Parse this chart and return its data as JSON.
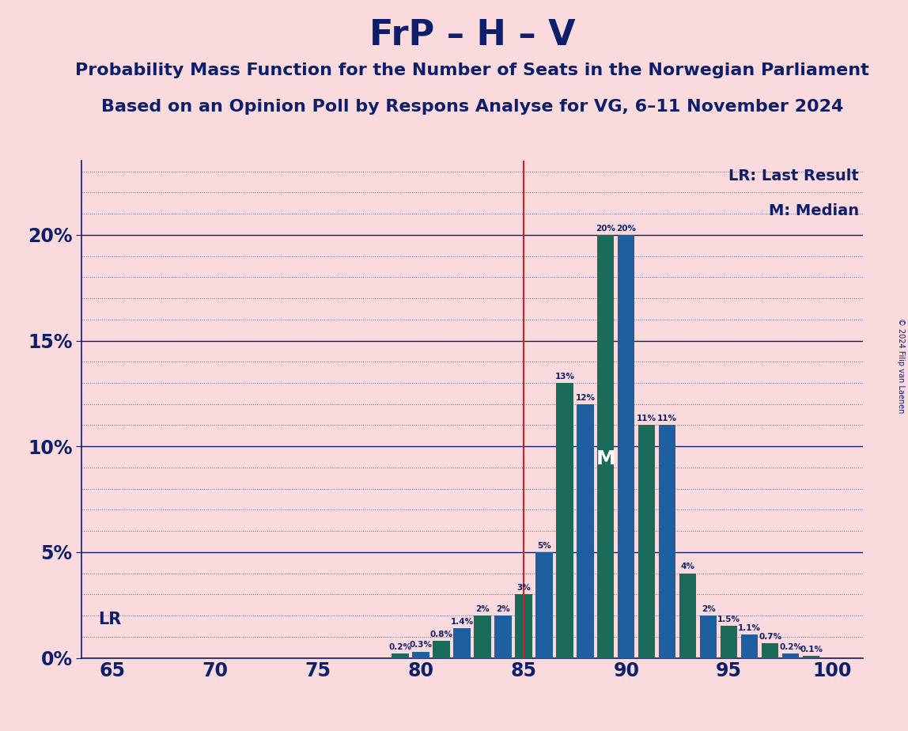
{
  "title": "FrP – H – V",
  "subtitle1": "Probability Mass Function for the Number of Seats in the Norwegian Parliament",
  "subtitle2": "Based on an Opinion Poll by Respons Analyse for VG, 6–11 November 2024",
  "copyright": "© 2024 Filip van Laenen",
  "seats": [
    65,
    66,
    67,
    68,
    69,
    70,
    71,
    72,
    73,
    74,
    75,
    76,
    77,
    78,
    79,
    80,
    81,
    82,
    83,
    84,
    85,
    86,
    87,
    88,
    89,
    90,
    91,
    92,
    93,
    94,
    95,
    96,
    97,
    98,
    99,
    100
  ],
  "values": [
    0.0,
    0.0,
    0.0,
    0.0,
    0.0,
    0.0,
    0.0,
    0.0,
    0.0,
    0.0,
    0.0,
    0.0,
    0.0,
    0.0,
    0.2,
    0.3,
    0.8,
    1.4,
    2.0,
    2.0,
    3.0,
    5.0,
    13.0,
    12.0,
    20.0,
    20.0,
    11.0,
    11.0,
    4.0,
    2.0,
    1.5,
    1.1,
    0.7,
    0.2,
    0.1,
    0.0
  ],
  "colors": [
    "#1a6b5a",
    "#1e5fa0",
    "#1a6b5a",
    "#1e5fa0",
    "#1a6b5a",
    "#1e5fa0",
    "#1a6b5a",
    "#1e5fa0",
    "#1a6b5a",
    "#1e5fa0",
    "#1a6b5a",
    "#1e5fa0",
    "#1a6b5a",
    "#1e5fa0",
    "#1a6b5a",
    "#1e5fa0",
    "#1a6b5a",
    "#1e5fa0",
    "#1a6b5a",
    "#1e5fa0",
    "#1a6b5a",
    "#1e5fa0",
    "#1a6b5a",
    "#1e5fa0",
    "#1a6b5a",
    "#1e5fa0",
    "#1a6b5a",
    "#1e5fa0",
    "#1a6b5a",
    "#1e5fa0",
    "#1a6b5a",
    "#1e5fa0",
    "#1a6b5a",
    "#1e5fa0",
    "#1a6b5a",
    "#1e5fa0"
  ],
  "lr_line_x": 85,
  "median_x": 89,
  "background_color": "#fadadd",
  "title_color": "#0d1f6b",
  "title_fontsize": 32,
  "subtitle_fontsize": 16,
  "ytick_labels": [
    "0%",
    "5%",
    "10%",
    "15%",
    "20%"
  ],
  "ytick_values": [
    0,
    5,
    10,
    15,
    20
  ],
  "ylim_top": 23.5,
  "xlim": [
    63.5,
    101.5
  ],
  "lr_color": "#cc2222",
  "lr_label": "LR",
  "median_label": "M",
  "legend_lr": "LR: Last Result",
  "legend_m": "M: Median",
  "dotted_grid_every": 1.0,
  "solid_grid_at": [
    0,
    5,
    10,
    15,
    20
  ]
}
